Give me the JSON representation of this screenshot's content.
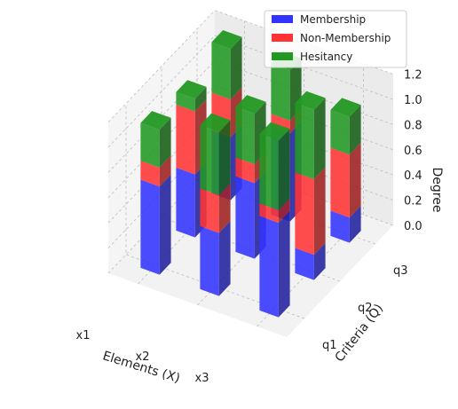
{
  "chart_data": {
    "type": "bar3d",
    "xlabel": "Elements (X)",
    "ylabel": "Criteria (Q)",
    "zlabel": "Degree",
    "x_categories": [
      "x1",
      "x2",
      "x3"
    ],
    "y_categories": [
      "q1",
      "q2",
      "q3"
    ],
    "zlim": [
      0,
      1.2
    ],
    "z_ticks": [
      "0.0",
      "0.2",
      "0.4",
      "0.6",
      "0.8",
      "1.0",
      "1.2"
    ],
    "grid": true,
    "legend_position": "top-right",
    "series": [
      {
        "name": "Membership",
        "color": "#3333ff"
      },
      {
        "name": "Non-Membership",
        "color": "#ff3333"
      },
      {
        "name": "Hesitancy",
        "color": "#229922"
      }
    ],
    "bars": [
      {
        "x": "x1",
        "y": "q1",
        "values": [
          0.7,
          0.15,
          0.3
        ]
      },
      {
        "x": "x1",
        "y": "q2",
        "values": [
          0.5,
          0.5,
          0.1
        ]
      },
      {
        "x": "x1",
        "y": "q3",
        "values": [
          0.5,
          0.3,
          0.4
        ]
      },
      {
        "x": "x2",
        "y": "q1",
        "values": [
          0.5,
          0.3,
          0.5
        ]
      },
      {
        "x": "x2",
        "y": "q2",
        "values": [
          0.6,
          0.15,
          0.4
        ]
      },
      {
        "x": "x2",
        "y": "q3",
        "values": [
          0.7,
          0.1,
          0.4
        ]
      },
      {
        "x": "x3",
        "y": "q1",
        "values": [
          0.75,
          0.1,
          0.55
        ]
      },
      {
        "x": "x3",
        "y": "q2",
        "values": [
          0.2,
          0.6,
          0.55
        ]
      },
      {
        "x": "x3",
        "y": "q3",
        "values": [
          0.2,
          0.5,
          0.3
        ]
      }
    ]
  }
}
